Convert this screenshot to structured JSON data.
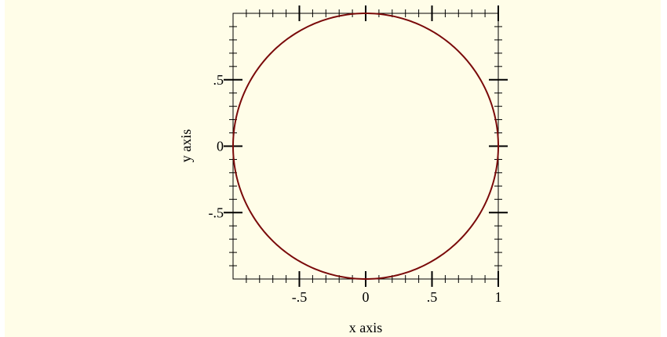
{
  "chart_data": {
    "type": "line",
    "title": "",
    "xlabel": "x axis",
    "ylabel": "y axis",
    "xlim": [
      -1,
      1
    ],
    "ylim": [
      -1,
      1
    ],
    "x_ticks": [
      {
        "value": -0.5,
        "label": "-.5"
      },
      {
        "value": 0,
        "label": "0"
      },
      {
        "value": 0.5,
        "label": ".5"
      },
      {
        "value": 1,
        "label": "1"
      }
    ],
    "y_ticks": [
      {
        "value": 0.5,
        "label": ".5"
      },
      {
        "value": 0,
        "label": "0"
      },
      {
        "value": -0.5,
        "label": "-.5"
      }
    ],
    "grid": false,
    "legend": "none",
    "series": [
      {
        "shape": "circle",
        "center": [
          0,
          0
        ],
        "radius": 1,
        "color": "#7a0a0a"
      }
    ],
    "background_color": "#fffde8"
  }
}
